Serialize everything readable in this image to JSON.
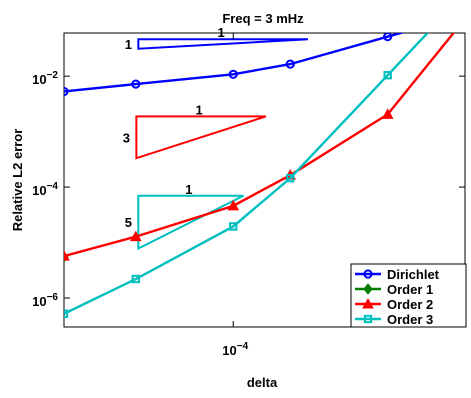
{
  "chart_data": {
    "type": "line",
    "title": "Freq = 3 mHz",
    "xlabel": "delta",
    "ylabel": "Relative L2 error",
    "xscale": "log",
    "yscale": "log",
    "xlim": [
      3e-05,
      0.00052
    ],
    "ylim": [
      3e-07,
      0.06
    ],
    "x_ticks": [
      {
        "value": 0.0001,
        "label": "10",
        "exp": "−4"
      }
    ],
    "y_ticks": [
      {
        "value": 1e-06,
        "label": "10",
        "exp": "−6"
      },
      {
        "value": 0.0001,
        "label": "10",
        "exp": "−4"
      },
      {
        "value": 0.01,
        "label": "10",
        "exp": "−2"
      }
    ],
    "grid": false,
    "legend_position": "bottom-right",
    "series": [
      {
        "name": "Dirichlet",
        "color": "#0000ff",
        "marker": "circle",
        "x": [
          3e-05,
          5e-05,
          0.0001,
          0.00015,
          0.0003,
          0.0005
        ],
        "y": [
          0.0053,
          0.0072,
          0.0108,
          0.0165,
          0.0515,
          0.12
        ]
      },
      {
        "name": "Order 1",
        "color": "#007f00",
        "marker": "diamond",
        "x": [
          3e-05
        ],
        "y": [
          5.5e-06
        ]
      },
      {
        "name": "Order 2",
        "color": "#ff0000",
        "marker": "triangle",
        "x": [
          3e-05,
          5e-05,
          0.0001,
          0.00015,
          0.0003,
          0.0005
        ],
        "y": [
          5.7e-06,
          1.28e-05,
          4.59e-05,
          0.000164,
          0.00205,
          0.0815
        ]
      },
      {
        "name": "Order 3",
        "color": "#00bfbf",
        "marker": "square",
        "x": [
          3e-05,
          5e-05,
          0.0001,
          0.00015,
          0.0003,
          0.0005
        ],
        "y": [
          5.2e-07,
          2.2e-06,
          1.95e-05,
          0.000145,
          0.0104,
          0.245
        ]
      }
    ],
    "slope_triangles": [
      {
        "color": "#0000ff",
        "slope_label": "1",
        "run_label": "1",
        "x": [
          5.09e-05,
          0.0001702
        ],
        "y": [
          0.0312,
          0.0463
        ]
      },
      {
        "color": "#ff0000",
        "slope_label": "3",
        "run_label": "1",
        "x": [
          5.02e-05,
          0.0001261
        ],
        "y": [
          0.000332,
          0.00188
        ]
      },
      {
        "color": "#00bfbf",
        "slope_label": "5",
        "run_label": "1",
        "x": [
          5.09e-05,
          0.0001075
        ],
        "y": [
          7.8e-06,
          6.97e-05
        ]
      }
    ]
  }
}
